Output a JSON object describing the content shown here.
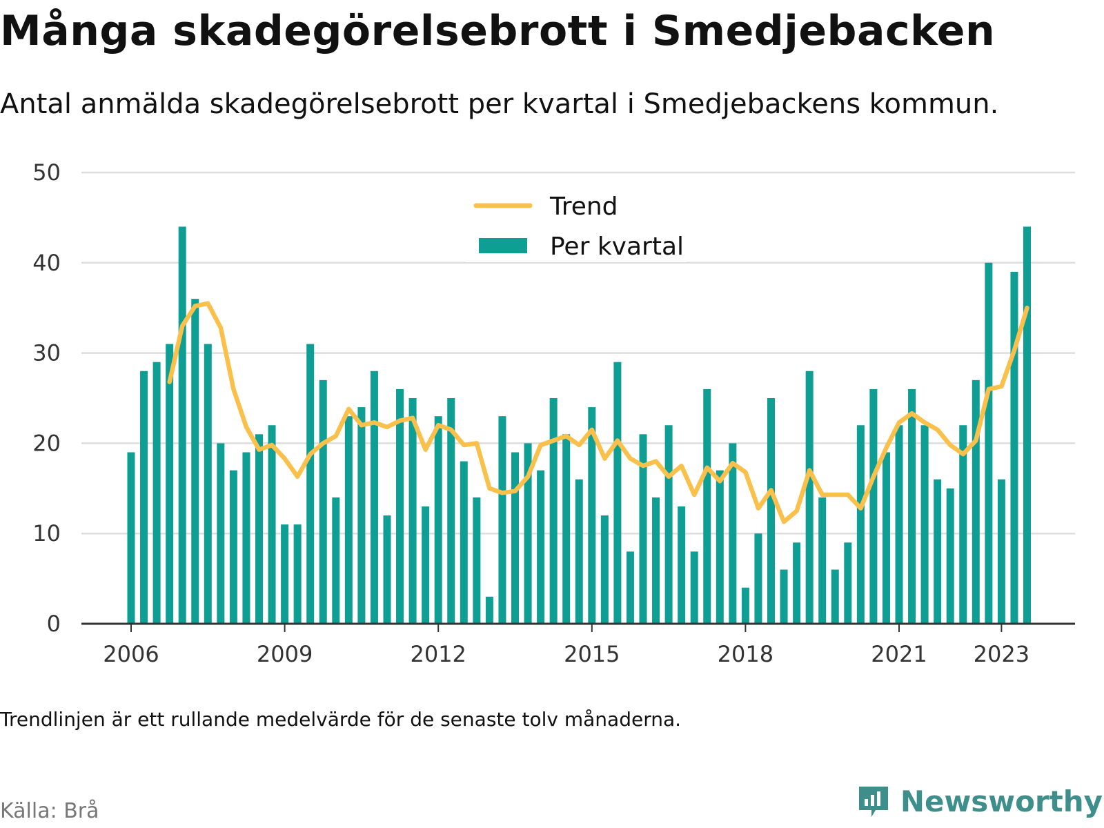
{
  "title": "Många skadegörelsebrott i Smedjebacken",
  "subtitle": "Antal anmälda skadegörelsebrott per kvartal i Smedjebackens kommun.",
  "note": "Trendlinjen är ett rullande medelvärde för de senaste tolv månaderna.",
  "source": "Källa: Brå",
  "brand": {
    "name": "Newsworthy",
    "icon": "newsworthy-logo-icon",
    "color": "#3e8f8c"
  },
  "colors": {
    "bars": "#0e9e94",
    "trend": "#f9c04c",
    "grid": "#dddddd",
    "axis": "#333333"
  },
  "chart_data": {
    "type": "bar",
    "x_start": "2006 Q1",
    "categories": [
      "2006 Q1",
      "2006 Q2",
      "2006 Q3",
      "2006 Q4",
      "2007 Q1",
      "2007 Q2",
      "2007 Q3",
      "2007 Q4",
      "2008 Q1",
      "2008 Q2",
      "2008 Q3",
      "2008 Q4",
      "2009 Q1",
      "2009 Q2",
      "2009 Q3",
      "2009 Q4",
      "2010 Q1",
      "2010 Q2",
      "2010 Q3",
      "2010 Q4",
      "2011 Q1",
      "2011 Q2",
      "2011 Q3",
      "2011 Q4",
      "2012 Q1",
      "2012 Q2",
      "2012 Q3",
      "2012 Q4",
      "2013 Q1",
      "2013 Q2",
      "2013 Q3",
      "2013 Q4",
      "2014 Q1",
      "2014 Q2",
      "2014 Q3",
      "2014 Q4",
      "2015 Q1",
      "2015 Q2",
      "2015 Q3",
      "2015 Q4",
      "2016 Q1",
      "2016 Q2",
      "2016 Q3",
      "2016 Q4",
      "2017 Q1",
      "2017 Q2",
      "2017 Q3",
      "2017 Q4",
      "2018 Q1",
      "2018 Q2",
      "2018 Q3",
      "2018 Q4",
      "2019 Q1",
      "2019 Q2",
      "2019 Q3",
      "2019 Q4",
      "2020 Q1",
      "2020 Q2",
      "2020 Q3",
      "2020 Q4",
      "2021 Q1",
      "2021 Q2",
      "2021 Q3",
      "2021 Q4",
      "2022 Q1",
      "2022 Q2",
      "2022 Q3",
      "2022 Q4",
      "2023 Q1",
      "2023 Q2",
      "2023 Q3"
    ],
    "series": [
      {
        "name": "Per kvartal",
        "kind": "bar",
        "values": [
          19,
          28,
          29,
          31,
          44,
          36,
          31,
          20,
          17,
          19,
          21,
          22,
          11,
          11,
          31,
          27,
          14,
          23,
          24,
          28,
          12,
          26,
          25,
          13,
          23,
          25,
          18,
          14,
          3,
          23,
          19,
          20,
          17,
          25,
          21,
          16,
          24,
          12,
          29,
          8,
          21,
          14,
          22,
          13,
          8,
          26,
          17,
          20,
          4,
          10,
          25,
          6,
          9,
          28,
          14,
          6,
          9,
          22,
          26,
          19,
          22,
          26,
          22,
          16,
          15,
          22,
          27,
          40,
          16,
          39,
          44
        ]
      },
      {
        "name": "Trend",
        "kind": "line",
        "values": [
          null,
          null,
          null,
          26.8,
          33,
          35.2,
          35.5,
          32.8,
          26,
          21.8,
          19.3,
          19.8,
          18.3,
          16.3,
          18.8,
          20,
          20.8,
          23.8,
          22,
          22.3,
          21.8,
          22.5,
          22.8,
          19.3,
          22,
          21.5,
          19.8,
          20,
          15,
          14.5,
          14.7,
          16.3,
          19.8,
          20.3,
          20.8,
          19.8,
          21.5,
          18.3,
          20.3,
          18.3,
          17.5,
          18,
          16.3,
          17.5,
          14.3,
          17.3,
          15.8,
          17.8,
          16.8,
          12.8,
          14.8,
          11.3,
          12.5,
          17,
          14.3,
          14.3,
          14.3,
          12.8,
          16.3,
          19.5,
          22.3,
          23.3,
          22.3,
          21.5,
          19.8,
          18.8,
          20.3,
          26,
          26.3,
          30.3,
          35
        ]
      }
    ],
    "xticks": [
      {
        "label": "2006",
        "index": 0
      },
      {
        "label": "2009",
        "index": 12
      },
      {
        "label": "2012",
        "index": 24
      },
      {
        "label": "2015",
        "index": 36
      },
      {
        "label": "2018",
        "index": 48
      },
      {
        "label": "2021",
        "index": 60
      },
      {
        "label": "2023",
        "index": 68
      }
    ],
    "yticks": [
      0,
      10,
      20,
      30,
      40,
      50
    ],
    "ylim": [
      0,
      50
    ],
    "grid": true,
    "legend_position": "top-center"
  }
}
